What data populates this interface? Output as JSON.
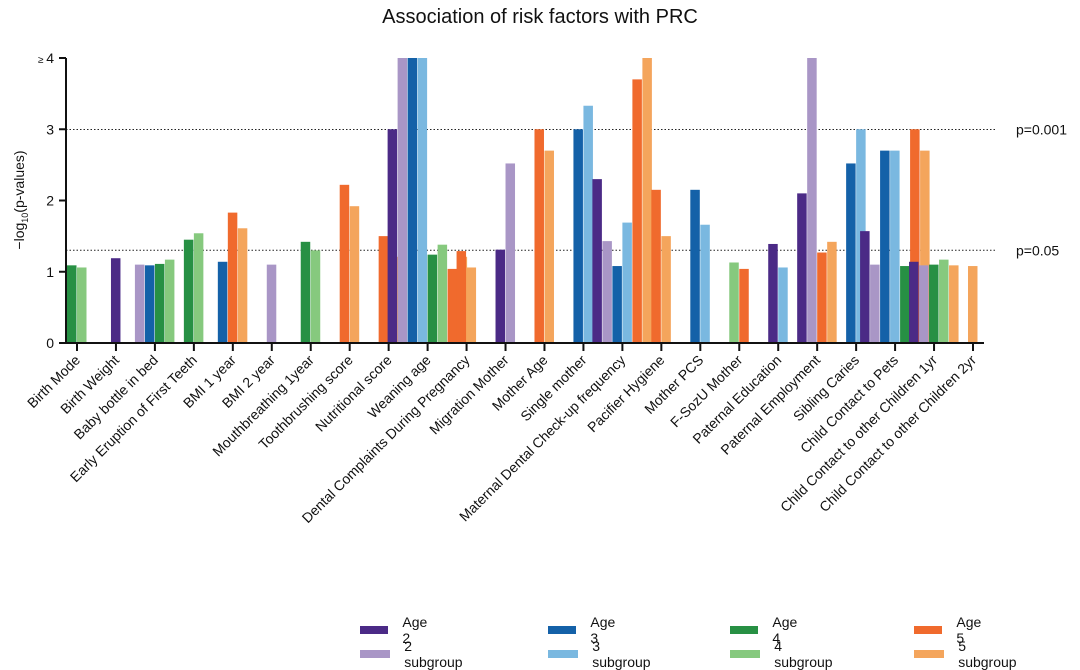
{
  "chart_data": {
    "type": "bar",
    "title": "Association of risk factors with PRC",
    "ylabel_main": "−log",
    "ylabel_sub": "10",
    "ylabel_rest": "(p-values)",
    "ylim": [
      0,
      4
    ],
    "yticks": [
      "0",
      "1",
      "2",
      "3",
      "≥ 4"
    ],
    "ytick_values": [
      0,
      1,
      2,
      3,
      4
    ],
    "reference_lines": [
      {
        "value": 2.9957,
        "label": "p=0.001"
      },
      {
        "value": 1.301,
        "label": "p=0.05"
      }
    ],
    "series": [
      {
        "name": "Age 2",
        "color": "#4b2a86"
      },
      {
        "name": "2 subgroup",
        "color": "#a996c6"
      },
      {
        "name": "Age 3",
        "color": "#1461a8"
      },
      {
        "name": "3 subgroup",
        "color": "#7ab8e0"
      },
      {
        "name": "Age 4",
        "color": "#279044"
      },
      {
        "name": "4 subgroup",
        "color": "#86c97e"
      },
      {
        "name": "Age 5",
        "color": "#f06a2d"
      },
      {
        "name": "5 subgroup",
        "color": "#f4a55c"
      }
    ],
    "categories": [
      "Birth Mode",
      "Birth Weight",
      "Baby bottle in bed",
      "Early Eruption of First Teeth",
      "BMI 1 year",
      "BMI 2 year",
      "Mouthbreathing 1year",
      "Toothbrushing score",
      "Nutritional score",
      "Weaning age",
      "Dental Complaints During Pregnancy",
      "Migration Mother",
      "Mother Age",
      "Single mother",
      "Maternal Dental Check-up frequency",
      "Pacifier Hygiene",
      "Mother PCS",
      "F-SozU Mother",
      "Paternal Education",
      "Paternal Employment",
      "Sibling Caries",
      "Child Contact to Pets",
      "Child Contact to other Children 1yr",
      "Child Contact to other Children 2yr"
    ],
    "groups": [
      {
        "category": "Birth Mode",
        "bars": [
          {
            "s": 4,
            "v": 1.09
          },
          {
            "s": 5,
            "v": 1.06
          }
        ]
      },
      {
        "category": "Birth Weight",
        "bars": [
          {
            "s": 0,
            "v": 1.19
          }
        ]
      },
      {
        "category": "Baby bottle in bed",
        "bars": [
          {
            "s": 1,
            "v": 1.1
          },
          {
            "s": 2,
            "v": 1.09
          },
          {
            "s": 4,
            "v": 1.11
          },
          {
            "s": 5,
            "v": 1.17
          }
        ]
      },
      {
        "category": "Early Eruption of First Teeth",
        "bars": [
          {
            "s": 4,
            "v": 1.45
          },
          {
            "s": 5,
            "v": 1.54
          }
        ]
      },
      {
        "category": "BMI 1 year",
        "bars": [
          {
            "s": 2,
            "v": 1.14
          },
          {
            "s": 6,
            "v": 1.83
          },
          {
            "s": 7,
            "v": 1.61
          }
        ]
      },
      {
        "category": "BMI 2 year",
        "bars": [
          {
            "s": 1,
            "v": 1.1
          }
        ]
      },
      {
        "category": "Mouthbreathing 1year",
        "bars": [
          {
            "s": 4,
            "v": 1.42
          },
          {
            "s": 5,
            "v": 1.3
          }
        ]
      },
      {
        "category": "Toothbrushing score",
        "bars": [
          {
            "s": 6,
            "v": 2.22
          },
          {
            "s": 7,
            "v": 1.92
          }
        ]
      },
      {
        "category": "Nutritional score",
        "bars": [
          {
            "s": 6,
            "v": 1.5
          },
          {
            "s": 7,
            "v": 1.21
          }
        ]
      },
      {
        "category": "Weaning age",
        "bars": [
          {
            "s": 0,
            "v": 3.0
          },
          {
            "s": 1,
            "v": 4.0
          },
          {
            "s": 2,
            "v": 4.0
          },
          {
            "s": 3,
            "v": 4.0
          },
          {
            "s": 4,
            "v": 1.24
          },
          {
            "s": 5,
            "v": 1.38
          },
          {
            "s": 6,
            "v": 1.04
          },
          {
            "s": 7,
            "v": 1.21
          }
        ]
      },
      {
        "category": "Dental Complaints During Pregnancy",
        "bars": [
          {
            "s": 6,
            "v": 1.29
          },
          {
            "s": 7,
            "v": 1.06
          }
        ]
      },
      {
        "category": "Migration Mother",
        "bars": [
          {
            "s": 0,
            "v": 1.31
          },
          {
            "s": 1,
            "v": 2.52
          }
        ]
      },
      {
        "category": "Mother Age",
        "bars": [
          {
            "s": 6,
            "v": 3.0
          },
          {
            "s": 7,
            "v": 2.7
          }
        ]
      },
      {
        "category": "Single mother",
        "bars": [
          {
            "s": 2,
            "v": 3.0
          },
          {
            "s": 3,
            "v": 3.33
          }
        ]
      },
      {
        "category": "Maternal Dental Check-up frequency",
        "bars": [
          {
            "s": 0,
            "v": 2.3
          },
          {
            "s": 1,
            "v": 1.43
          },
          {
            "s": 2,
            "v": 1.08
          },
          {
            "s": 3,
            "v": 1.69
          },
          {
            "s": 6,
            "v": 3.7
          },
          {
            "s": 7,
            "v": 4.0
          }
        ]
      },
      {
        "category": "Pacifier Hygiene",
        "bars": [
          {
            "s": 6,
            "v": 2.15
          },
          {
            "s": 7,
            "v": 1.5
          }
        ]
      },
      {
        "category": "Mother PCS",
        "bars": [
          {
            "s": 2,
            "v": 2.15
          },
          {
            "s": 3,
            "v": 1.66
          }
        ]
      },
      {
        "category": "F-SozU Mother",
        "bars": [
          {
            "s": 5,
            "v": 1.13
          },
          {
            "s": 6,
            "v": 1.04
          }
        ]
      },
      {
        "category": "Paternal Education",
        "bars": [
          {
            "s": 0,
            "v": 1.39
          },
          {
            "s": 3,
            "v": 1.06
          }
        ]
      },
      {
        "category": "Paternal Employment",
        "bars": [
          {
            "s": 0,
            "v": 2.1
          },
          {
            "s": 1,
            "v": 4.0
          },
          {
            "s": 6,
            "v": 1.27
          },
          {
            "s": 7,
            "v": 1.42
          }
        ]
      },
      {
        "category": "Sibling Caries",
        "bars": [
          {
            "s": 2,
            "v": 2.52
          },
          {
            "s": 3,
            "v": 3.0
          }
        ]
      },
      {
        "category": "Child Contact to Pets",
        "bars": [
          {
            "s": 0,
            "v": 1.57
          },
          {
            "s": 1,
            "v": 1.1
          },
          {
            "s": 2,
            "v": 2.7
          },
          {
            "s": 3,
            "v": 2.7
          },
          {
            "s": 4,
            "v": 1.08
          },
          {
            "s": 6,
            "v": 3.0
          },
          {
            "s": 7,
            "v": 2.7
          }
        ]
      },
      {
        "category": "Child Contact to other Children 1yr",
        "bars": [
          {
            "s": 0,
            "v": 1.14
          },
          {
            "s": 1,
            "v": 1.09
          },
          {
            "s": 4,
            "v": 1.1
          },
          {
            "s": 5,
            "v": 1.17
          },
          {
            "s": 7,
            "v": 1.09
          }
        ]
      },
      {
        "category": "Child Contact to other Children 2yr",
        "bars": [
          {
            "s": 7,
            "v": 1.08
          }
        ]
      }
    ],
    "grid": false,
    "legend_position": "bottom"
  }
}
